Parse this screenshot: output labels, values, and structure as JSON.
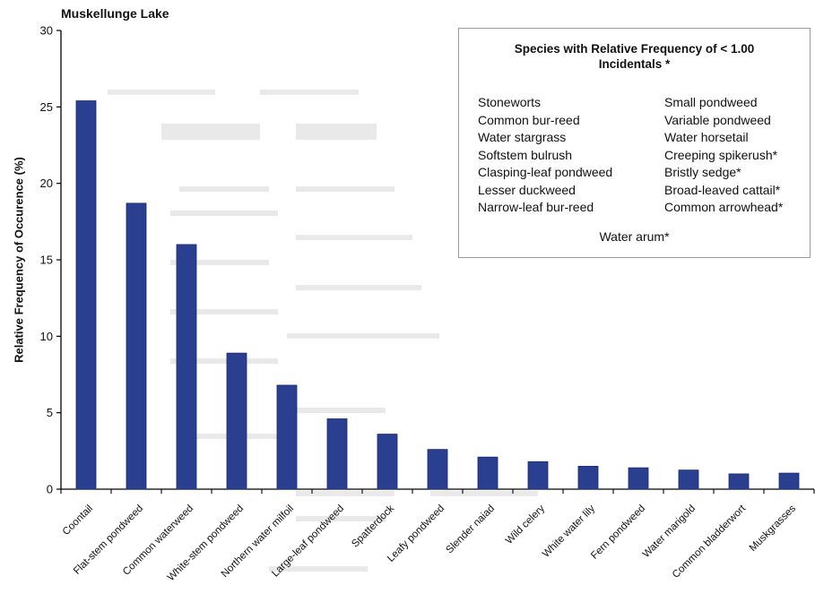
{
  "chart_data": {
    "type": "bar",
    "title": "Muskellunge Lake",
    "xlabel": "",
    "ylabel": "Relative Frequency of Occurence (%)",
    "ylim": [
      0,
      30
    ],
    "yticks": [
      0,
      5,
      10,
      15,
      20,
      25,
      30
    ],
    "grid": false,
    "legend": "none",
    "bar_color": "#2b3f91",
    "categories": [
      "Coontail",
      "Flat-stem pondweed",
      "Common waterweed",
      "White-stem pondweed",
      "Northern water milfoil",
      "Large-leaf pondweed",
      "Spatterdock",
      "Leafy pondweed",
      "Slender naiad",
      "Wild celery",
      "White water lily",
      "Fern pondweed",
      "Water marigold",
      "Common bladderwort",
      "Muskgrasses"
    ],
    "values": [
      25.4,
      18.7,
      16.0,
      8.9,
      6.8,
      4.6,
      3.6,
      2.6,
      2.1,
      1.8,
      1.5,
      1.4,
      1.25,
      1.0,
      1.05
    ]
  },
  "annotation": {
    "title": "Species with Relative Frequency of <  1.00",
    "subtitle": "Incidentals *",
    "left_column": [
      "Stoneworts",
      "Common bur-reed",
      "Water stargrass",
      "Softstem bulrush",
      "Clasping-leaf pondweed",
      "Lesser duckweed",
      "Narrow-leaf bur-reed"
    ],
    "right_column": [
      "Small pondweed",
      "Variable pondweed",
      "Water horsetail",
      "Creeping spikerush*",
      "Bristly sedge*",
      "Broad-leaved cattail*",
      "Common arrowhead*"
    ],
    "extra": "Water arum*"
  }
}
